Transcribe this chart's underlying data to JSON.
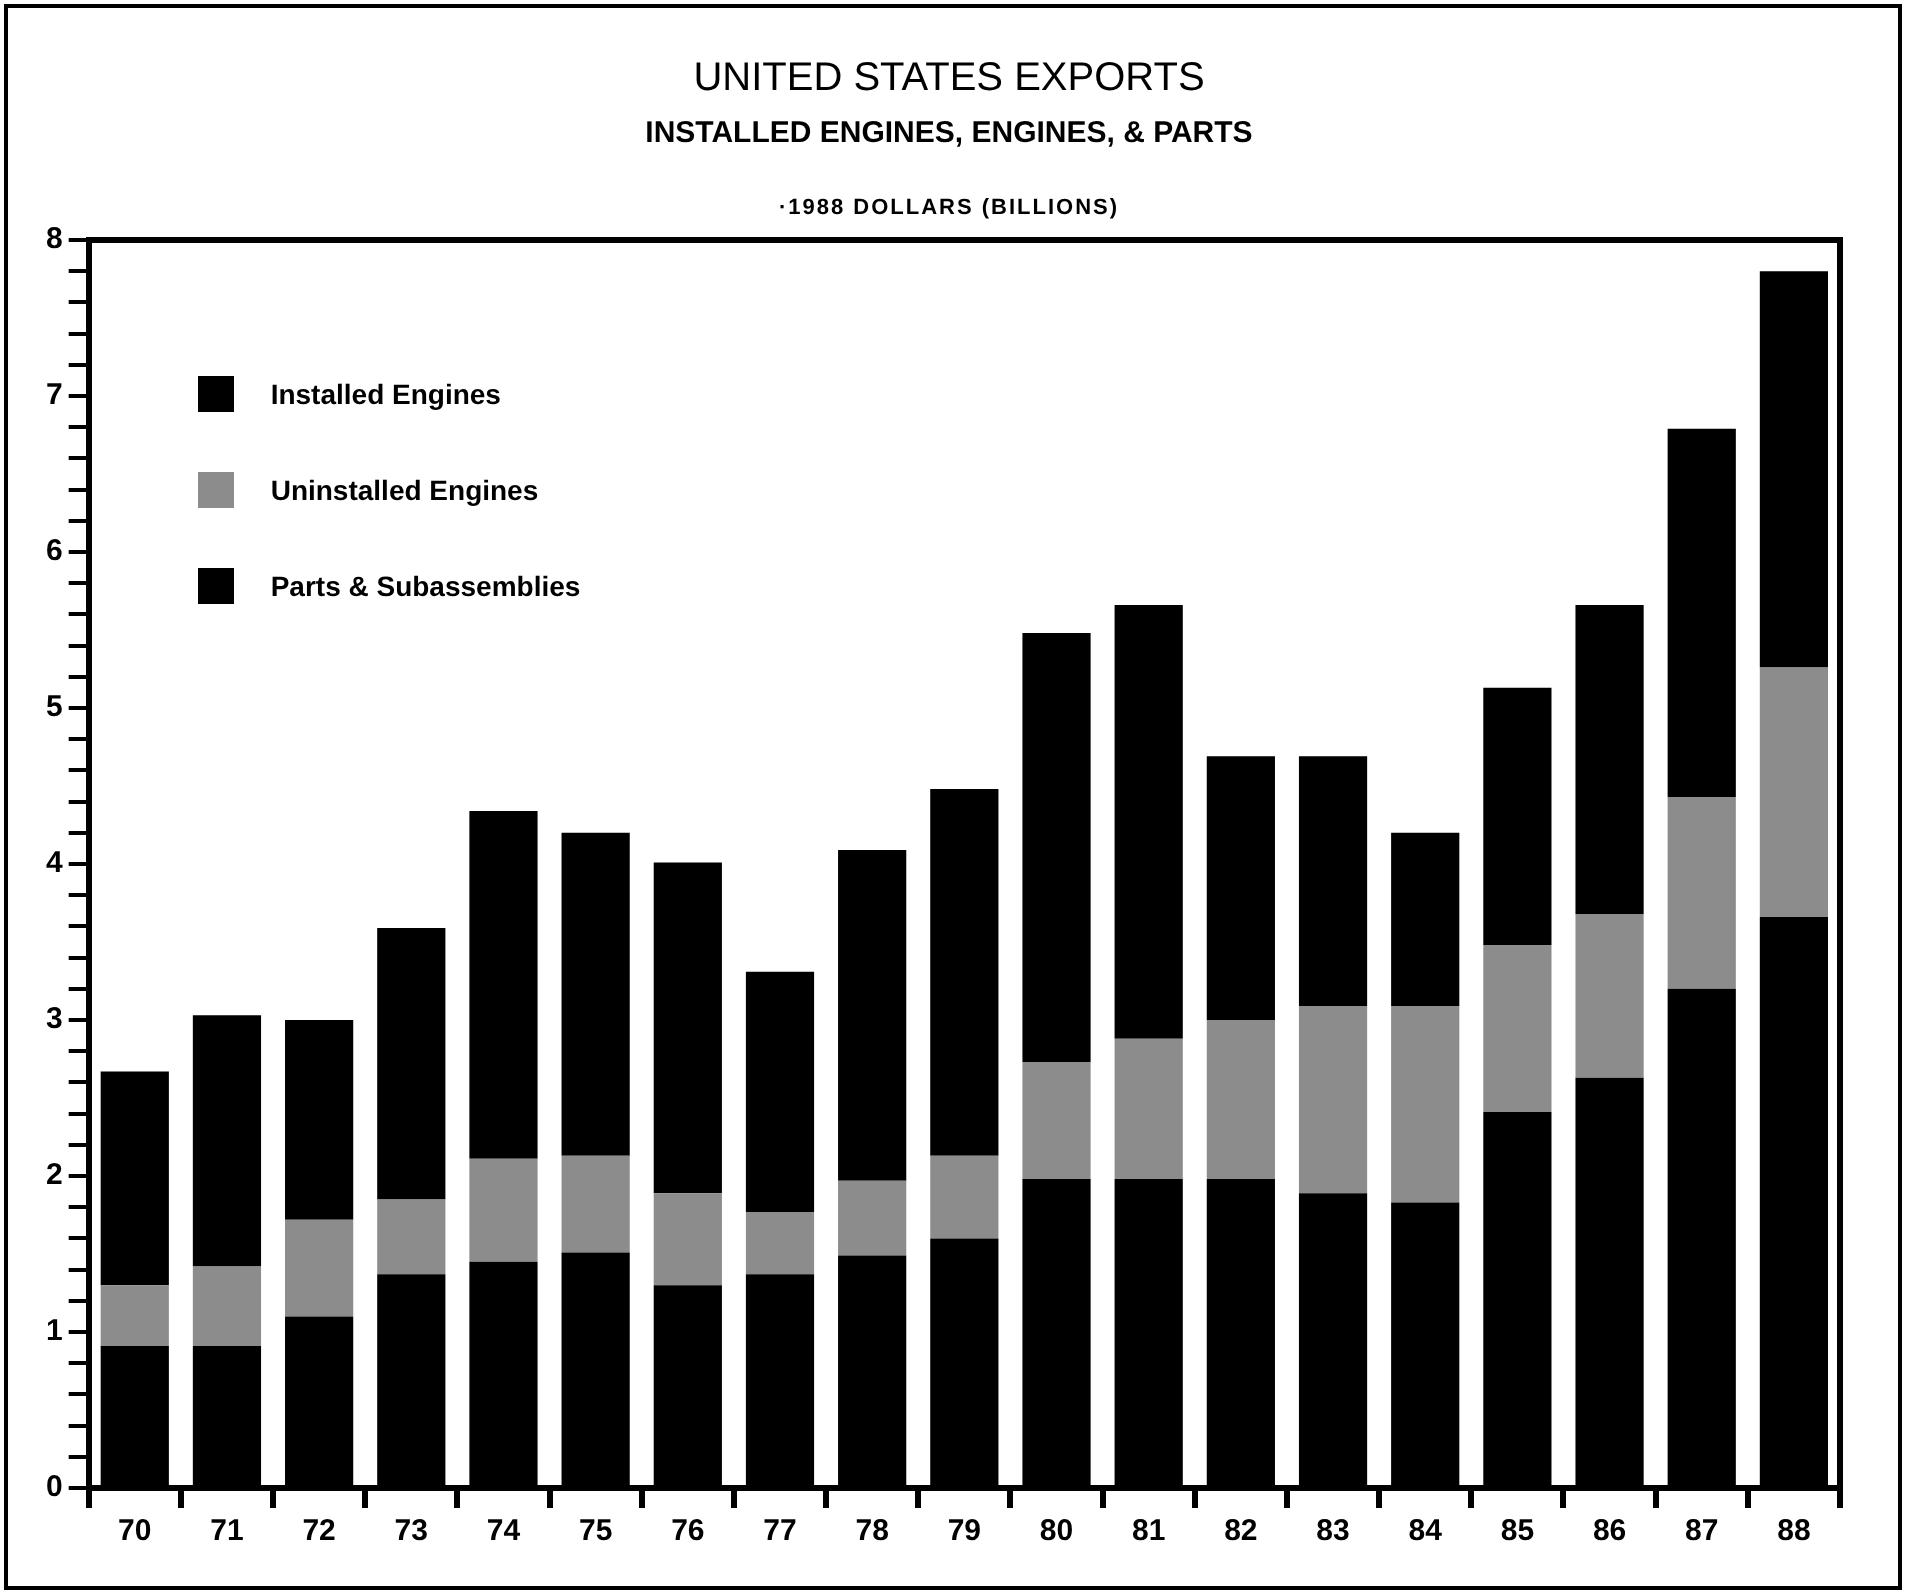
{
  "chart_data": {
    "type": "bar",
    "title": "UNITED STATES EXPORTS",
    "subtitle": "INSTALLED ENGINES, ENGINES, & PARTS",
    "annotations": [
      "·1988 DOLLARS (BILLIONS)"
    ],
    "categories": [
      "70",
      "71",
      "72",
      "73",
      "74",
      "75",
      "76",
      "77",
      "78",
      "79",
      "80",
      "81",
      "82",
      "83",
      "84",
      "85",
      "86",
      "87",
      "88"
    ],
    "stacked": true,
    "series": [
      {
        "name": "Parts & Subassemblies",
        "color": "#000000",
        "values": [
          0.91,
          0.91,
          1.1,
          1.37,
          1.45,
          1.51,
          1.3,
          1.37,
          1.49,
          1.6,
          1.98,
          1.98,
          1.98,
          1.89,
          1.83,
          2.41,
          2.63,
          3.2,
          3.66
        ]
      },
      {
        "name": "Uninstalled Engines",
        "color": "#8c8c8c",
        "values": [
          0.39,
          0.51,
          0.62,
          0.48,
          0.66,
          0.62,
          0.59,
          0.4,
          0.48,
          0.53,
          0.75,
          0.9,
          1.02,
          1.2,
          1.26,
          1.07,
          1.05,
          1.23,
          1.6
        ]
      },
      {
        "name": "Installed Engines",
        "color": "#000000",
        "values": [
          1.37,
          1.61,
          1.28,
          1.74,
          2.23,
          2.07,
          2.12,
          1.54,
          2.12,
          2.35,
          2.75,
          2.78,
          1.69,
          1.6,
          1.11,
          1.65,
          1.98,
          2.36,
          2.54
        ]
      }
    ],
    "ylim": [
      0,
      8
    ],
    "yticks": [
      0,
      {
        "value": 0.2,
        "label": null
      },
      {
        "value": 0.4,
        "label": null
      },
      {
        "value": 0.6,
        "label": null
      },
      {
        "value": 0.8,
        "label": null
      },
      1,
      {
        "value": 1.2,
        "label": null
      },
      {
        "value": 1.4,
        "label": null
      },
      {
        "value": 1.6,
        "label": null
      },
      {
        "value": 1.8,
        "label": null
      },
      2,
      {
        "value": 2.2,
        "label": null
      },
      {
        "value": 2.4,
        "label": null
      },
      {
        "value": 2.6,
        "label": null
      },
      {
        "value": 2.8,
        "label": null
      },
      3,
      {
        "value": 3.2,
        "label": null
      },
      {
        "value": 3.4,
        "label": null
      },
      {
        "value": 3.6,
        "label": null
      },
      {
        "value": 3.8,
        "label": null
      },
      4,
      {
        "value": 4.2,
        "label": null
      },
      {
        "value": 4.4,
        "label": null
      },
      {
        "value": 4.6,
        "label": null
      },
      {
        "value": 4.8,
        "label": null
      },
      5,
      {
        "value": 5.2,
        "label": null
      },
      {
        "value": 5.4,
        "label": null
      },
      {
        "value": 5.6,
        "label": null
      },
      {
        "value": 5.8,
        "label": null
      },
      6,
      {
        "value": 6.2,
        "label": null
      },
      {
        "value": 6.4,
        "label": null
      },
      {
        "value": 6.6,
        "label": null
      },
      {
        "value": 6.8,
        "label": null
      },
      7,
      {
        "value": 7.2,
        "label": null
      },
      {
        "value": 7.4,
        "label": null
      },
      {
        "value": 7.6,
        "label": null
      },
      {
        "value": 7.8,
        "label": null
      },
      8
    ],
    "grid": false,
    "legend": "top left"
  }
}
